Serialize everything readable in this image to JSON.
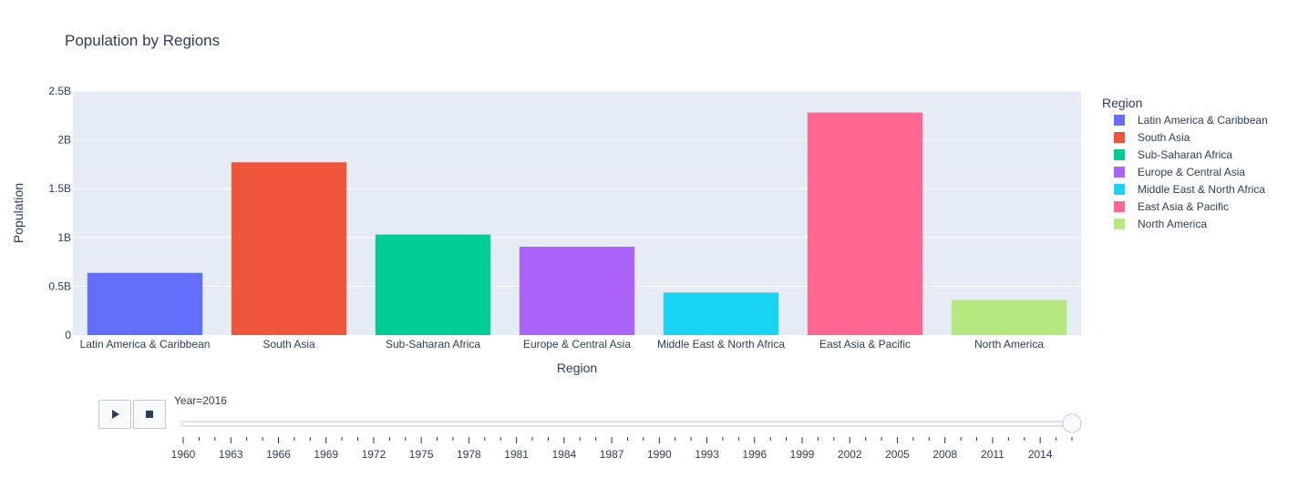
{
  "chart_data": {
    "type": "bar",
    "title": "Population by Regions",
    "xlabel": "Region",
    "ylabel": "Population",
    "ylim": [
      0,
      2500000000
    ],
    "yticks": [
      {
        "value": 0,
        "label": "0"
      },
      {
        "value": 500000000,
        "label": "0.5B"
      },
      {
        "value": 1000000000,
        "label": "1B"
      },
      {
        "value": 1500000000,
        "label": "1.5B"
      },
      {
        "value": 2000000000,
        "label": "2B"
      },
      {
        "value": 2500000000,
        "label": "2.5B"
      }
    ],
    "grid": true,
    "legend_title": "Region",
    "legend_position": "right",
    "categories": [
      "Latin America & Caribbean",
      "South Asia",
      "Sub-Saharan Africa",
      "Europe & Central Asia",
      "Middle East & North Africa",
      "East Asia & Pacific",
      "North America"
    ],
    "series": [
      {
        "name": "Latin America & Caribbean",
        "color": "#636efa",
        "values": [
          637000000,
          null,
          null,
          null,
          null,
          null,
          null
        ]
      },
      {
        "name": "South Asia",
        "color": "#ef553b",
        "values": [
          null,
          1770000000,
          null,
          null,
          null,
          null,
          null
        ]
      },
      {
        "name": "Sub-Saharan Africa",
        "color": "#00cc96",
        "values": [
          null,
          null,
          1030000000,
          null,
          null,
          null,
          null
        ]
      },
      {
        "name": "Europe & Central Asia",
        "color": "#ab63fa",
        "values": [
          null,
          null,
          null,
          905000000,
          null,
          null,
          null
        ]
      },
      {
        "name": "Middle East & North Africa",
        "color": "#19d3f3",
        "values": [
          null,
          null,
          null,
          null,
          435000000,
          null,
          null
        ]
      },
      {
        "name": "East Asia & Pacific",
        "color": "#ff6692",
        "values": [
          null,
          null,
          null,
          null,
          null,
          2280000000,
          null
        ]
      },
      {
        "name": "North America",
        "color": "#b6e880",
        "values": [
          null,
          null,
          null,
          null,
          null,
          null,
          360000000
        ]
      }
    ]
  },
  "slider": {
    "current_label": "Year=2016",
    "current_year": 2016,
    "start_year": 1960,
    "end_year": 2016,
    "tick_labels": [
      "1960",
      "1963",
      "1966",
      "1969",
      "1972",
      "1975",
      "1978",
      "1981",
      "1984",
      "1987",
      "1990",
      "1993",
      "1996",
      "1999",
      "2002",
      "2005",
      "2008",
      "2011",
      "2014"
    ],
    "play_icon": "play-icon",
    "stop_icon": "stop-icon"
  }
}
